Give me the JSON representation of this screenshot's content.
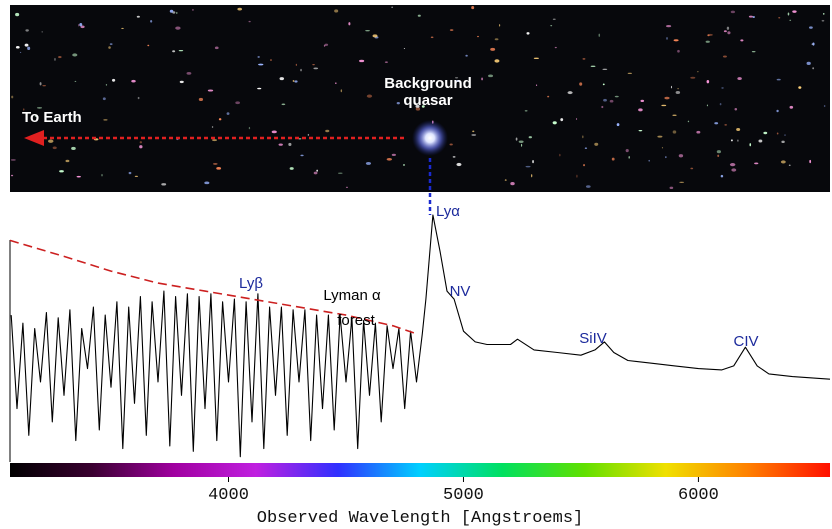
{
  "chart_data": {
    "type": "line",
    "xlabel": "Observed Wavelength [Angstroems]",
    "xlim": [
      3070,
      6560
    ],
    "xticks": [
      4000,
      5000,
      6000
    ],
    "ylim": [
      0,
      1
    ],
    "annotations": [
      "Background",
      "quasar",
      "To Earth",
      "Lyβ",
      "Lyman α",
      "forest",
      "Lyα",
      "NV",
      "SiIV",
      "CIV"
    ],
    "series": [
      {
        "color": "#000000",
        "x": [
          3075,
          3100,
          3125,
          3150,
          3175,
          3200,
          3225,
          3250,
          3275,
          3300,
          3325,
          3350,
          3375,
          3400,
          3425,
          3450,
          3475,
          3500,
          3525,
          3550,
          3575,
          3600,
          3625,
          3650,
          3675,
          3700,
          3725,
          3750,
          3775,
          3800,
          3825,
          3850,
          3875,
          3900,
          3925,
          3950,
          3975,
          4000,
          4025,
          4050,
          4075,
          4100,
          4125,
          4150,
          4175,
          4200,
          4225,
          4250,
          4275,
          4300,
          4325,
          4350,
          4375,
          4400,
          4425,
          4450,
          4475,
          4500,
          4525,
          4550,
          4575,
          4600,
          4625,
          4650,
          4675,
          4700,
          4725,
          4750,
          4775,
          4800,
          4825,
          4840,
          4870,
          4900,
          4930,
          4960,
          5000,
          5050,
          5100,
          5200,
          5230,
          5300,
          5400,
          5500,
          5560,
          5600,
          5640,
          5700,
          5800,
          5900,
          6000,
          6100,
          6150,
          6200,
          6250,
          6300,
          6400,
          6560
        ],
        "values": [
          0.55,
          0.2,
          0.52,
          0.1,
          0.5,
          0.3,
          0.56,
          0.15,
          0.54,
          0.25,
          0.57,
          0.08,
          0.5,
          0.35,
          0.58,
          0.12,
          0.55,
          0.28,
          0.6,
          0.05,
          0.58,
          0.22,
          0.62,
          0.1,
          0.6,
          0.3,
          0.64,
          0.06,
          0.62,
          0.25,
          0.63,
          0.04,
          0.62,
          0.2,
          0.63,
          0.08,
          0.6,
          0.3,
          0.61,
          0.02,
          0.6,
          0.15,
          0.63,
          0.05,
          0.58,
          0.25,
          0.58,
          0.1,
          0.57,
          0.3,
          0.57,
          0.08,
          0.55,
          0.2,
          0.55,
          0.12,
          0.55,
          0.3,
          0.54,
          0.05,
          0.53,
          0.25,
          0.52,
          0.15,
          0.51,
          0.35,
          0.5,
          0.2,
          0.49,
          0.3,
          0.48,
          0.61,
          0.925,
          0.79,
          0.64,
          0.61,
          0.49,
          0.45,
          0.44,
          0.44,
          0.46,
          0.42,
          0.41,
          0.4,
          0.42,
          0.45,
          0.41,
          0.38,
          0.37,
          0.36,
          0.35,
          0.345,
          0.36,
          0.43,
          0.36,
          0.33,
          0.32,
          0.31
        ]
      },
      {
        "color": "#cc2020",
        "dash": true,
        "x": [
          3070,
          3300,
          3500,
          3700,
          3900,
          4100,
          4300,
          4500,
          4700,
          4800
        ],
        "values": [
          0.83,
          0.77,
          0.715,
          0.67,
          0.64,
          0.61,
          0.58,
          0.55,
          0.51,
          0.48
        ]
      }
    ]
  }
}
